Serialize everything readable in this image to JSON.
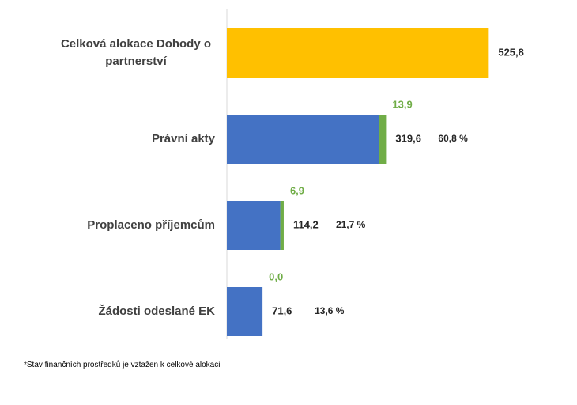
{
  "chart_data": {
    "type": "stacked-bar-horizontal",
    "categories": [
      "Celková alokace Dohody o partnerství",
      "Právní akty",
      "Proplaceno příjemcům",
      "Žádosti odeslané EK"
    ],
    "series": [
      {
        "colors": [
          "#FFC000",
          "#4472C4",
          "#4472C4",
          "#4472C4"
        ],
        "values": [
          525.8,
          305.7,
          107.3,
          71.6
        ]
      },
      {
        "color": "#70AD47",
        "values": [
          null,
          13.9,
          6.9,
          0.0
        ],
        "value_labels": [
          null,
          "13,9",
          "6,9",
          "0,0"
        ]
      }
    ],
    "totals": [
      525.8,
      319.6,
      114.2,
      71.6
    ],
    "total_labels": [
      "525,8",
      "319,6",
      "114,2",
      "71,6"
    ],
    "share_labels": [
      null,
      "60,8 %",
      "21,7 %",
      "13,6 %"
    ],
    "xlim": [
      0,
      530
    ],
    "footnote": "*Stav finančních prostředků je vztažen k celkové alokaci"
  }
}
